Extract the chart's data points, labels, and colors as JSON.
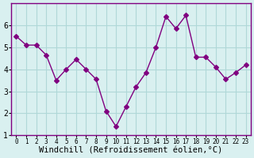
{
  "x": [
    0,
    1,
    2,
    3,
    4,
    5,
    6,
    7,
    8,
    9,
    10,
    11,
    12,
    13,
    14,
    15,
    16,
    17,
    18,
    19,
    20,
    21,
    22,
    23
  ],
  "y": [
    5.5,
    5.1,
    5.1,
    4.65,
    3.5,
    4.0,
    4.45,
    4.0,
    3.55,
    2.1,
    1.4,
    2.3,
    3.2,
    3.85,
    5.0,
    6.4,
    5.85,
    6.45,
    4.55,
    4.55,
    4.1,
    3.55,
    3.85,
    4.2
  ],
  "line_color": "#800080",
  "marker": "D",
  "marker_size": 3,
  "bg_color": "#d9f0f0",
  "grid_color": "#b0d8d8",
  "xlabel": "Windchill (Refroidissement éolien,°C)",
  "xlim": [
    -0.5,
    23.5
  ],
  "ylim": [
    1.0,
    7.0
  ],
  "yticks": [
    1,
    2,
    3,
    4,
    5,
    6
  ],
  "xticks": [
    0,
    1,
    2,
    3,
    4,
    5,
    6,
    7,
    8,
    9,
    10,
    11,
    12,
    13,
    14,
    15,
    16,
    17,
    18,
    19,
    20,
    21,
    22,
    23
  ],
  "xlabel_fontsize": 7.5,
  "tick_fontsize": 7,
  "border_color": "#800080"
}
